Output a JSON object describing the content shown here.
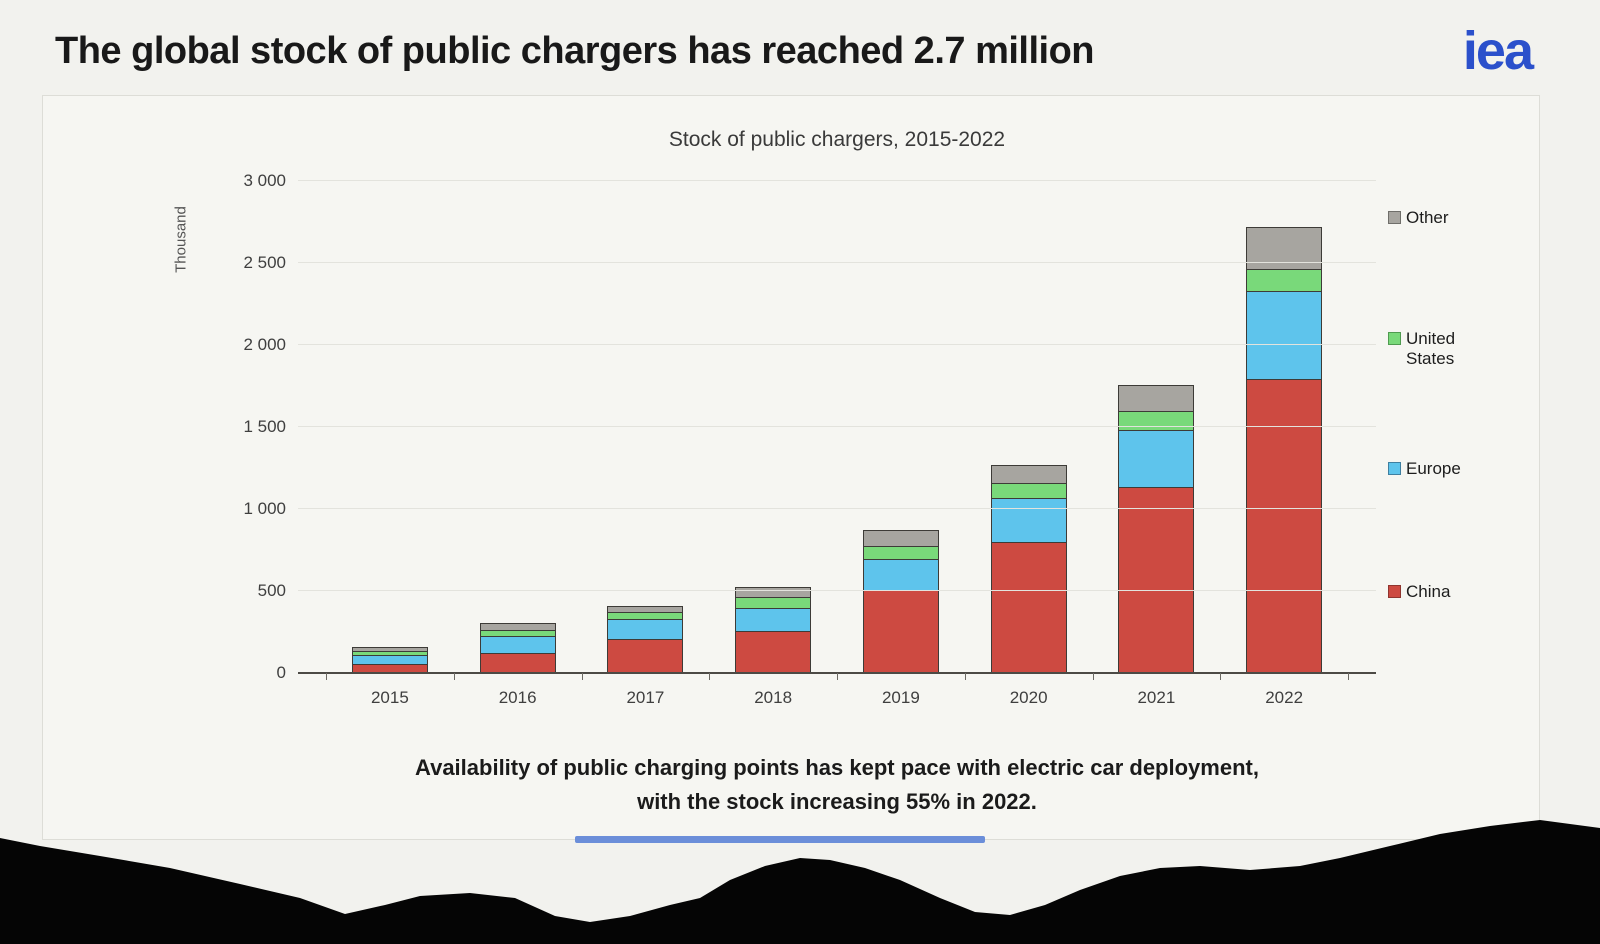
{
  "page": {
    "title": "The global stock of public chargers has reached 2.7 million",
    "logo_text": "iea",
    "logo_color": "#2b50cb"
  },
  "chart": {
    "title": "Stock of public chargers, 2015-2022",
    "y_axis_title": "Thousand",
    "footnote_line1": "Availability of public charging points has kept pace with electric car deployment,",
    "footnote_line2": "with the stock increasing 55% in 2022."
  },
  "chart_data": {
    "type": "bar",
    "stacked": true,
    "title": "Stock of public chargers, 2015-2022",
    "xlabel": "",
    "ylabel": "Thousand",
    "categories": [
      "2015",
      "2016",
      "2017",
      "2018",
      "2019",
      "2020",
      "2021",
      "2022"
    ],
    "series": [
      {
        "name": "China",
        "color": "#cd4a41",
        "border": "#8f352f",
        "values": [
          60,
          130,
          215,
          260,
          515,
          805,
          1140,
          1800
        ]
      },
      {
        "name": "Europe",
        "color": "#5ec4ec",
        "border": "#3f7fa0",
        "values": [
          65,
          105,
          125,
          150,
          190,
          275,
          355,
          540
        ]
      },
      {
        "name": "United States",
        "color": "#79d97a",
        "border": "#4f9b50",
        "values": [
          30,
          45,
          50,
          70,
          90,
          100,
          120,
          140
        ]
      },
      {
        "name": "Other",
        "color": "#a7a5a0",
        "border": "#6f6e6a",
        "values": [
          30,
          50,
          45,
          70,
          100,
          110,
          165,
          265
        ]
      }
    ],
    "totals": [
      185,
      330,
      435,
      550,
      895,
      1290,
      1780,
      2745
    ],
    "ylim": [
      0,
      3000
    ],
    "yticks": [
      0,
      500,
      1000,
      1500,
      2000,
      2500,
      3000
    ],
    "ytick_labels": [
      "0",
      "500",
      "1 000",
      "1 500",
      "2 000",
      "2 500",
      "3 000"
    ],
    "grid": true,
    "legend_position": "right",
    "legend_order": [
      "Other",
      "United States",
      "Europe",
      "China"
    ]
  }
}
